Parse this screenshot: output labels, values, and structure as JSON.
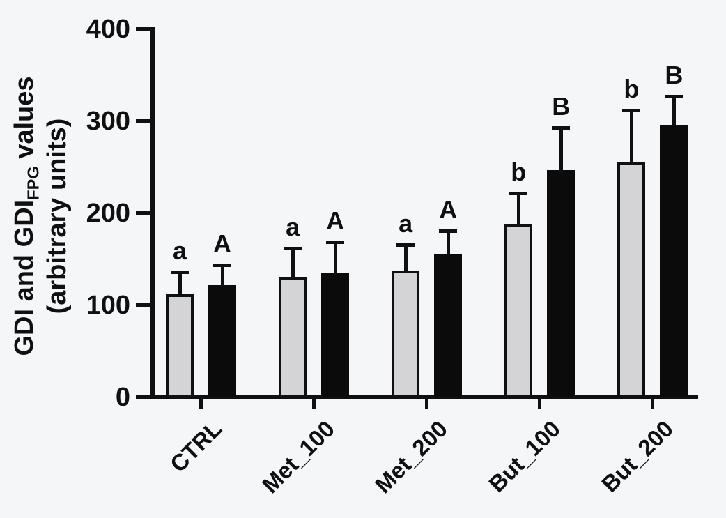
{
  "figure": {
    "background": "#f5f6f8",
    "axis_color": "#101010",
    "ylabel": {
      "part1": "GDI and GDI",
      "sub": "FPG",
      "part2": " values",
      "line2": "(arbitrary units)"
    }
  },
  "chart_data": {
    "type": "bar",
    "title": "",
    "xlabel": "",
    "ylabel": "GDI and GDI_FPG values (arbitrary units)",
    "categories": [
      "CTRL",
      "Met_100",
      "Met_200",
      "But_100",
      "But_200"
    ],
    "series": [
      {
        "name": "GDI",
        "color": "#d4d4d6",
        "border_color": "#101010",
        "values": [
          112,
          131,
          138,
          189,
          256
        ],
        "errors": [
          24,
          31,
          28,
          33,
          56
        ],
        "letters": [
          "a",
          "a",
          "a",
          "b",
          "b"
        ]
      },
      {
        "name": "GDI_FPG",
        "color": "#0b0b0b",
        "border_color": "#0b0b0b",
        "values": [
          122,
          135,
          155,
          247,
          296
        ],
        "errors": [
          22,
          34,
          26,
          46,
          31
        ],
        "letters": [
          "A",
          "A",
          "A",
          "B",
          "B"
        ]
      }
    ],
    "yticks": [
      0,
      100,
      200,
      300,
      400
    ],
    "ylim": [
      0,
      400
    ],
    "grid": false,
    "legend": "none",
    "error_bars": "upper only, capped",
    "annotation_note": "lowercase letters a/b mark GDI groups, uppercase A/B mark GDI_FPG groups"
  }
}
